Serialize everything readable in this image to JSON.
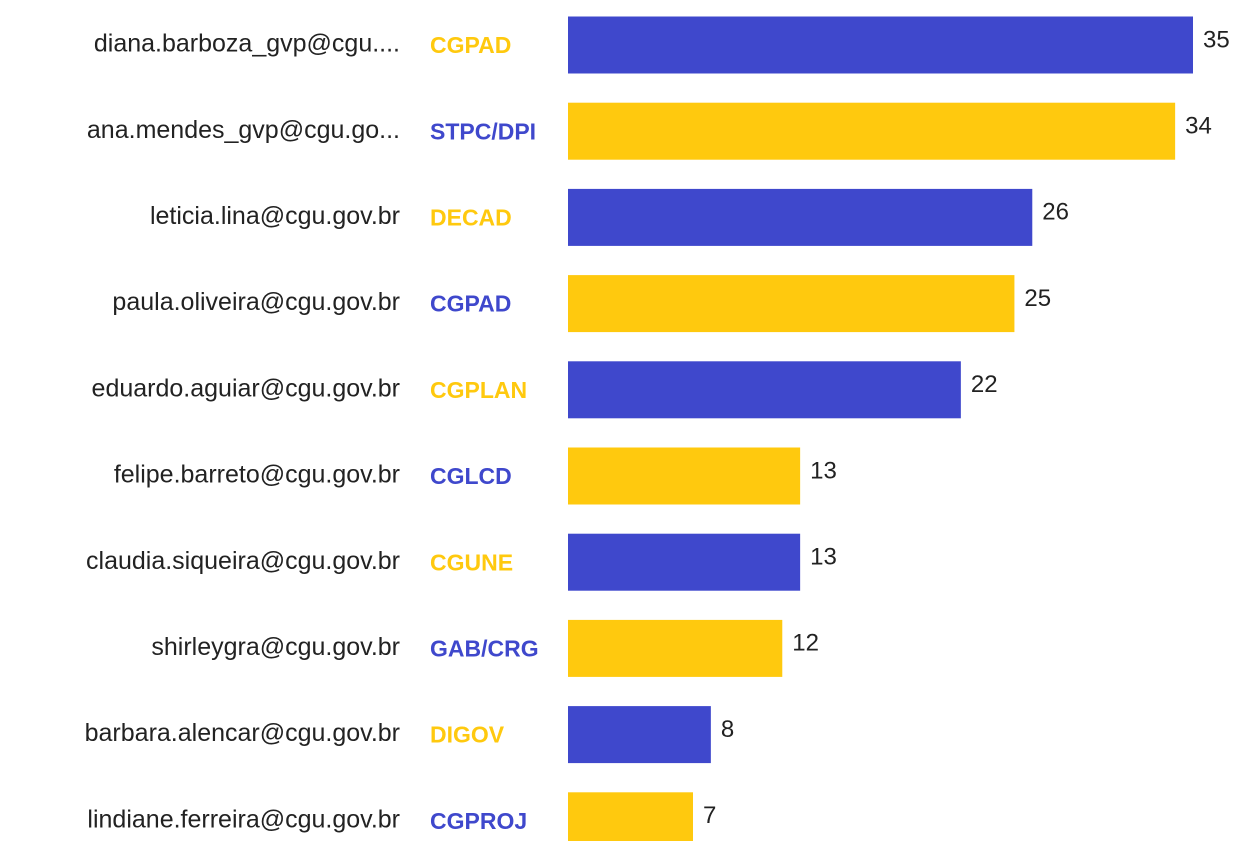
{
  "chart_data": {
    "type": "bar",
    "orientation": "horizontal",
    "categories": [
      "diana.barboza_gvp@cgu....",
      "ana.mendes_gvp@cgu.go...",
      "leticia.lina@cgu.gov.br",
      "paula.oliveira@cgu.gov.br",
      "eduardo.aguiar@cgu.gov.br",
      "felipe.barreto@cgu.gov.br",
      "claudia.siqueira@cgu.gov.br",
      "shirleygra@cgu.gov.br",
      "barbara.alencar@cgu.gov.br",
      "lindiane.ferreira@cgu.gov.br"
    ],
    "departments": [
      "CGPAD",
      "STPC/DPI",
      "DECAD",
      "CGPAD",
      "CGPLAN",
      "CGLCD",
      "CGUNE",
      "GAB/CRG",
      "DIGOV",
      "CGPROJ"
    ],
    "values": [
      35,
      34,
      26,
      25,
      22,
      13,
      13,
      12,
      8,
      7
    ],
    "bar_colors": [
      "#3f48cc",
      "#ffc90e",
      "#3f48cc",
      "#ffc90e",
      "#3f48cc",
      "#ffc90e",
      "#3f48cc",
      "#ffc90e",
      "#3f48cc",
      "#ffc90e"
    ],
    "department_colors": [
      "#ffc90e",
      "#3f48cc",
      "#ffc90e",
      "#3f48cc",
      "#ffc90e",
      "#3f48cc",
      "#ffc90e",
      "#3f48cc",
      "#ffc90e",
      "#3f48cc"
    ]
  }
}
